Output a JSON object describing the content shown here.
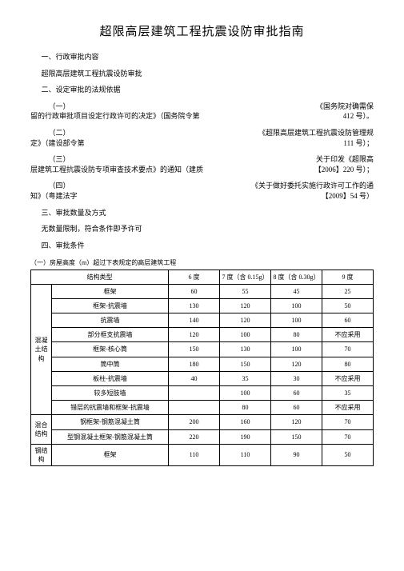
{
  "title": "超限高层建筑工程抗震设防审批指南",
  "s1_head": "一、行政审批内容",
  "s1_text": "超限高层建筑工程抗震设防审批",
  "s2_head": "二、设定审批的法规依据",
  "legal": [
    {
      "num": "（一）",
      "left": "留的行政审批项目设定行政许可的决定》（国务院令第",
      "right1": "《国务院对确需保",
      "right2": "412 号）。"
    },
    {
      "num": "（二）",
      "left": "定》（建设部令第",
      "right1": "《超限高层建筑工程抗震设防管理规",
      "right2": "111 号）；"
    },
    {
      "num": "（三）",
      "left": "层建筑工程抗震设防专项审查技术要点》的通知（建质",
      "right1": "关于印发《超限高",
      "right2": "【2006】220 号）；"
    },
    {
      "num": "（四）",
      "left": "知》（粤建法字",
      "right1": "《关于做好委托实施行政许可工作的通",
      "right2": "【2009】54 号）"
    }
  ],
  "s3_head": "三、审批数量及方式",
  "s3_text": "无数量限制，符合条件即予许可",
  "s4_head": "四、审批条件",
  "table_caption": "（一）房屋高度（m）超过下表规定的高层建筑工程",
  "columns": [
    "结构类型",
    "6 度",
    "7 度（含 0.15g）",
    "8 度（含 0.30g）",
    "9 度"
  ],
  "groups": [
    {
      "label": "混凝土结构",
      "rows": [
        {
          "type": "框架",
          "v": [
            "60",
            "55",
            "45",
            "25"
          ]
        },
        {
          "type": "框架-抗震墙",
          "v": [
            "130",
            "120",
            "100",
            "50"
          ]
        },
        {
          "type": "抗震墙",
          "v": [
            "140",
            "120",
            "100",
            "60"
          ]
        },
        {
          "type": "部分框支抗震墙",
          "v": [
            "120",
            "100",
            "80",
            "不应采用"
          ]
        },
        {
          "type": "框架-核心筒",
          "v": [
            "150",
            "130",
            "100",
            "70"
          ]
        },
        {
          "type": "筒中筒",
          "v": [
            "180",
            "150",
            "120",
            "80"
          ]
        },
        {
          "type": "板柱-抗震墙",
          "v": [
            "40",
            "35",
            "30",
            "不应采用"
          ]
        },
        {
          "type": "较多短肢墙",
          "v": [
            "",
            "100",
            "60",
            "35"
          ]
        },
        {
          "type": "错层的抗震墙和框架-抗震墙",
          "v": [
            "",
            "80",
            "60",
            "不应采用"
          ]
        }
      ]
    },
    {
      "label": "混合结构",
      "rows": [
        {
          "type": "钢框架-钢筋混凝土筒",
          "v": [
            "200",
            "160",
            "120",
            "70"
          ]
        },
        {
          "type": "型钢混凝土框架-钢筋混凝土筒",
          "v": [
            "220",
            "190",
            "150",
            "70"
          ]
        }
      ]
    },
    {
      "label": "钢结构",
      "rows": [
        {
          "type": "框架",
          "v": [
            "110",
            "110",
            "90",
            "50"
          ]
        }
      ]
    }
  ]
}
